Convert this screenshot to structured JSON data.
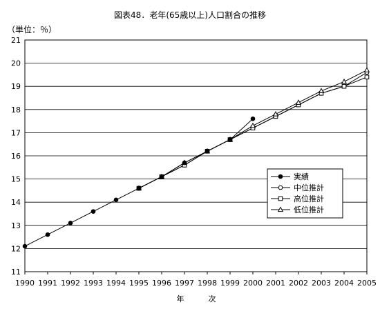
{
  "chart_data": {
    "type": "line",
    "title": "図表48．老年(65歳以上)人口割合の推移",
    "ylabel": "（単位：％）",
    "xlabel": "年　次",
    "ylim": [
      11,
      21
    ],
    "yticks": [
      11,
      12,
      13,
      14,
      15,
      16,
      17,
      18,
      19,
      20,
      21
    ],
    "x": [
      1990,
      1991,
      1992,
      1993,
      1994,
      1995,
      1996,
      1997,
      1998,
      1999,
      2000,
      2001,
      2002,
      2003,
      2004,
      2005
    ],
    "grid": true,
    "legend_position": "center-right",
    "series": [
      {
        "name": "実績",
        "marker": "filled-circle",
        "values": [
          12.1,
          12.6,
          13.1,
          13.6,
          14.1,
          14.6,
          15.1,
          15.7,
          16.2,
          16.7,
          17.6,
          null,
          null,
          null,
          null,
          null
        ]
      },
      {
        "name": "中位推計",
        "marker": "open-circle",
        "values": [
          null,
          null,
          null,
          null,
          null,
          14.6,
          15.1,
          15.6,
          16.2,
          16.7,
          17.2,
          17.7,
          18.2,
          18.7,
          19.0,
          19.6
        ]
      },
      {
        "name": "高位推計",
        "marker": "open-square",
        "values": [
          null,
          null,
          null,
          null,
          null,
          14.6,
          15.1,
          15.6,
          16.2,
          16.7,
          17.2,
          17.7,
          18.2,
          18.7,
          19.0,
          19.4
        ]
      },
      {
        "name": "低位推計",
        "marker": "open-triangle",
        "values": [
          null,
          null,
          null,
          null,
          null,
          14.6,
          15.1,
          15.7,
          16.2,
          16.7,
          17.3,
          17.8,
          18.3,
          18.8,
          19.2,
          19.7
        ]
      }
    ]
  }
}
